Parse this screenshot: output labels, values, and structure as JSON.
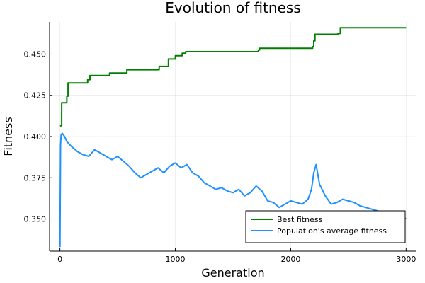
{
  "chart_data": {
    "type": "line",
    "title": "Evolution of fitness",
    "xlabel": "Generation",
    "ylabel": "Fitness",
    "xlim": [
      -90,
      3090
    ],
    "ylim": [
      0.3305,
      0.4695
    ],
    "xticks": [
      0,
      1000,
      2000,
      3000
    ],
    "yticks": [
      0.35,
      0.375,
      0.4,
      0.425,
      0.45
    ],
    "ytick_labels": [
      "0.350",
      "0.375",
      "0.400",
      "0.425",
      "0.450"
    ],
    "grid": true,
    "legend_position": "bottom-right",
    "series": [
      {
        "name": "Best fitness",
        "color": "#008000",
        "step": true,
        "x": [
          0,
          15,
          60,
          70,
          240,
          260,
          430,
          580,
          860,
          940,
          1000,
          1060,
          1090,
          1720,
          1730,
          2190,
          2200,
          2210,
          2410,
          2430,
          3000
        ],
        "y": [
          0.4065,
          0.4205,
          0.4245,
          0.4325,
          0.4345,
          0.437,
          0.4385,
          0.4405,
          0.4425,
          0.447,
          0.449,
          0.4505,
          0.4515,
          0.4525,
          0.4535,
          0.4545,
          0.458,
          0.462,
          0.4625,
          0.466,
          0.466
        ]
      },
      {
        "name": "Population's average fitness",
        "color": "#1E90FF",
        "x": [
          0,
          5,
          10,
          20,
          40,
          60,
          100,
          150,
          200,
          250,
          300,
          350,
          400,
          450,
          500,
          550,
          600,
          650,
          700,
          750,
          800,
          850,
          900,
          950,
          1000,
          1050,
          1100,
          1150,
          1200,
          1250,
          1300,
          1350,
          1400,
          1450,
          1500,
          1550,
          1600,
          1650,
          1700,
          1750,
          1800,
          1850,
          1900,
          1950,
          2000,
          2050,
          2100,
          2150,
          2180,
          2200,
          2220,
          2250,
          2300,
          2350,
          2400,
          2450,
          2500,
          2550,
          2600,
          2650,
          2700,
          2750,
          2800,
          2850,
          2900,
          2950,
          3000
        ],
        "y": [
          0.333,
          0.395,
          0.401,
          0.402,
          0.4,
          0.397,
          0.394,
          0.391,
          0.389,
          0.388,
          0.392,
          0.39,
          0.388,
          0.386,
          0.388,
          0.385,
          0.382,
          0.378,
          0.375,
          0.377,
          0.379,
          0.381,
          0.378,
          0.382,
          0.384,
          0.381,
          0.383,
          0.378,
          0.376,
          0.372,
          0.37,
          0.368,
          0.369,
          0.367,
          0.366,
          0.368,
          0.364,
          0.366,
          0.37,
          0.367,
          0.361,
          0.36,
          0.357,
          0.359,
          0.361,
          0.36,
          0.359,
          0.362,
          0.368,
          0.378,
          0.383,
          0.371,
          0.364,
          0.359,
          0.36,
          0.362,
          0.361,
          0.36,
          0.358,
          0.357,
          0.356,
          0.355,
          0.354,
          0.353,
          0.353,
          0.352,
          0.35
        ]
      }
    ]
  }
}
